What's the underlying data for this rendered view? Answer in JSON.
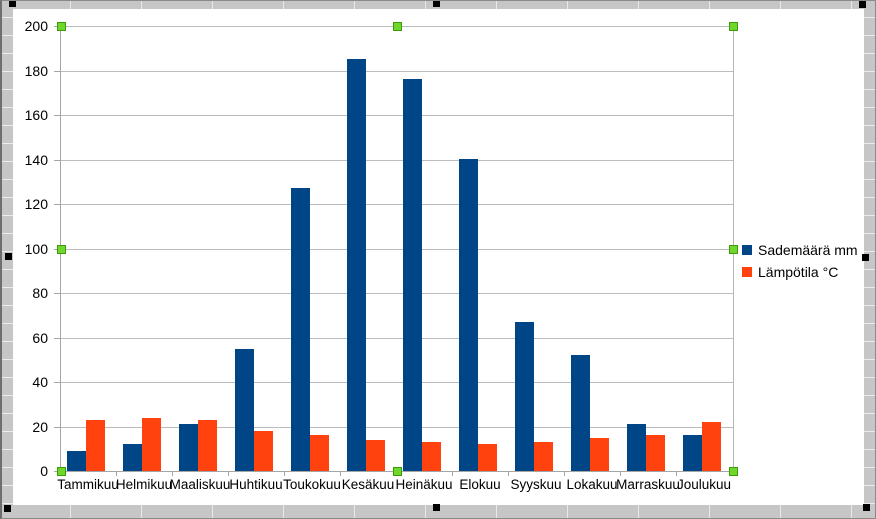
{
  "app": {
    "context_note": "spreadsheet chart object in edit mode with plot area selected"
  },
  "chart_data": {
    "type": "bar",
    "title": "",
    "xlabel": "",
    "ylabel": "",
    "categories": [
      "Tammikuu",
      "Helmikuu",
      "Maaliskuu",
      "Huhtikuu",
      "Toukokuu",
      "Kesäkuu",
      "Heinäkuu",
      "Elokuu",
      "Syyskuu",
      "Lokakuu",
      "Marraskuu",
      "Joulukuu"
    ],
    "series": [
      {
        "name": "Sademäärä mm",
        "color": "#004586",
        "values": [
          9,
          12,
          21,
          55,
          127,
          185,
          176,
          140,
          67,
          52,
          21,
          16
        ]
      },
      {
        "name": "Lämpötila °C",
        "color": "#ff420e",
        "values": [
          23,
          24,
          23,
          18,
          16,
          14,
          13,
          12,
          13,
          15,
          16,
          22
        ]
      }
    ],
    "ylim": [
      0,
      200
    ],
    "yticks": [
      0,
      20,
      40,
      60,
      80,
      100,
      120,
      140,
      160,
      180,
      200
    ],
    "grid": "horizontal",
    "legend_position": "right"
  },
  "colors": {
    "plot_gridline": "#bcbcbc",
    "axis_line": "#a6a6a6",
    "chart_background": "#ffffff",
    "sheet_background": "#c6c6c6",
    "selection_handle_fill": "#6fd62c",
    "selection_handle_border": "#3d9a0a",
    "object_handle": "#000000"
  }
}
